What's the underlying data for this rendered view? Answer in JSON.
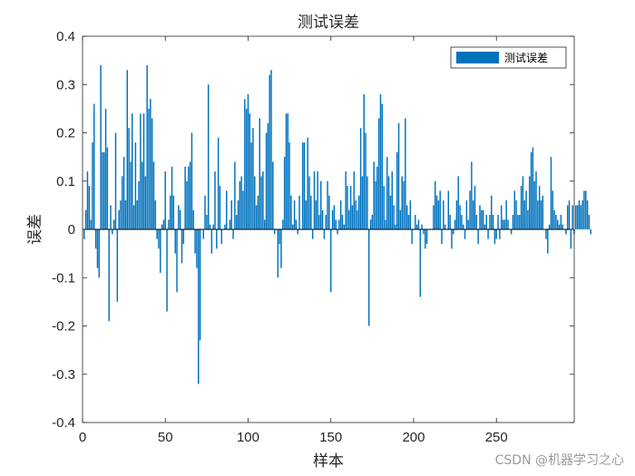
{
  "chart_data": {
    "type": "bar",
    "title": "测试误差",
    "xlabel": "样本",
    "ylabel": "误差",
    "xlim": [
      0,
      297
    ],
    "ylim": [
      -0.4,
      0.4
    ],
    "xticks": [
      0,
      50,
      100,
      150,
      200,
      250
    ],
    "yticks": [
      -0.4,
      -0.3,
      -0.2,
      -0.1,
      0,
      0.1,
      0.2,
      0.3,
      0.4
    ],
    "grid": false,
    "legend_position": "top-right",
    "series": [
      {
        "name": "测试误差",
        "color": "#0072BD",
        "values": [
          -0.02,
          0.04,
          0.12,
          0.09,
          0.02,
          0.18,
          0.26,
          -0.04,
          -0.08,
          -0.1,
          0.34,
          0.16,
          0.16,
          0.25,
          0.17,
          -0.19,
          0.05,
          -0.01,
          0.02,
          0.2,
          -0.15,
          0.04,
          0.06,
          0.11,
          0.15,
          0.06,
          0.33,
          0.21,
          0.14,
          0.24,
          0.05,
          0.18,
          0.06,
          0.1,
          0.24,
          0.14,
          0.24,
          0.11,
          0.34,
          0.25,
          0.27,
          0.23,
          0.14,
          0.06,
          -0.02,
          -0.04,
          -0.09,
          0.01,
          0.02,
          0.12,
          -0.17,
          0.02,
          0.07,
          0.13,
          0.07,
          -0.05,
          -0.13,
          0.05,
          0.04,
          -0.07,
          -0.03,
          0.13,
          0.1,
          0.13,
          0.14,
          0.2,
          0.04,
          -0.05,
          -0.08,
          -0.32,
          -0.23,
          0.0,
          -0.02,
          0.07,
          0.03,
          0.3,
          0.01,
          -0.05,
          0.01,
          0.12,
          -0.04,
          0.19,
          0.09,
          -0.03,
          0.0,
          0.01,
          0.08,
          0.0,
          0.02,
          0.06,
          -0.02,
          0.14,
          0.03,
          0.06,
          0.1,
          0.11,
          0.08,
          0.27,
          0.25,
          0.28,
          0.24,
          0.18,
          0.21,
          0.11,
          0.05,
          0.07,
          0.23,
          0.11,
          0.12,
          0.02,
          0.2,
          0.22,
          0.32,
          0.33,
          0.14,
          -0.01,
          0.0,
          -0.1,
          -0.03,
          -0.08,
          0.02,
          0.15,
          0.24,
          0.24,
          0.18,
          0.07,
          0.01,
          0.06,
          0.02,
          -0.01,
          0.07,
          0.0,
          0.18,
          0.18,
          0.06,
          0.19,
          0.11,
          0.07,
          -0.02,
          0.12,
          0.06,
          0.12,
          0.03,
          0.1,
          0.04,
          -0.02,
          0.03,
          0.1,
          0.07,
          -0.13,
          0.04,
          0.05,
          0.02,
          -0.01,
          0.02,
          0.06,
          0.03,
          0.01,
          0.12,
          0.09,
          0.04,
          0.09,
          0.05,
          0.12,
          0.06,
          0.04,
          0.07,
          0.21,
          0.11,
          0.28,
          0.2,
          0.11,
          -0.2,
          0.02,
          0.03,
          0.14,
          0.1,
          0.13,
          0.23,
          0.28,
          0.26,
          0.09,
          0.02,
          0.15,
          0.11,
          0.07,
          0.12,
          0.05,
          0.01,
          0.16,
          0.22,
          0.04,
          0.11,
          0.1,
          0.23,
          0.05,
          0.03,
          0.06,
          -0.03,
          0.0,
          0.03,
          0.01,
          0.02,
          -0.14,
          0.01,
          -0.01,
          -0.04,
          -0.03,
          0.0,
          0.0,
          0.0,
          0.05,
          0.1,
          0.07,
          0.06,
          0.08,
          -0.03,
          0.06,
          0.01,
          0.0,
          0.08,
          0.03,
          -0.04,
          -0.01,
          0.02,
          0.06,
          0.11,
          0.05,
          0.03,
          0.01,
          -0.02,
          0.06,
          0.02,
          0.08,
          0.14,
          0.06,
          0.09,
          0.03,
          -0.03,
          0.05,
          0.04,
          0.04,
          0.01,
          0.03,
          -0.02,
          0.03,
          0.07,
          0.03,
          -0.03,
          -0.02,
          0.03,
          -0.02,
          0.05,
          0.02,
          0.02,
          0.06,
          0.02,
          0.0,
          -0.01,
          0.03,
          0.08,
          0.06,
          0.03,
          0.03,
          0.09,
          0.11,
          0.06,
          0.08,
          0.04,
          0.11,
          0.16,
          0.17,
          0.1,
          0.12,
          0.06,
          0.09,
          0.06,
          0.07,
          0.0,
          -0.02,
          -0.05,
          0.01,
          0.15,
          0.08,
          0.04,
          0.03,
          0.02,
          0.01,
          0.03,
          0.01,
          0.0,
          -0.01,
          0.05,
          0.06,
          -0.04,
          0.05,
          -0.01,
          0.05,
          0.05,
          0.06,
          0.05,
          0.06,
          0.08,
          0.08,
          0.06,
          0.03,
          -0.01
        ]
      }
    ]
  },
  "watermark": "CSDN @机器学习之心"
}
